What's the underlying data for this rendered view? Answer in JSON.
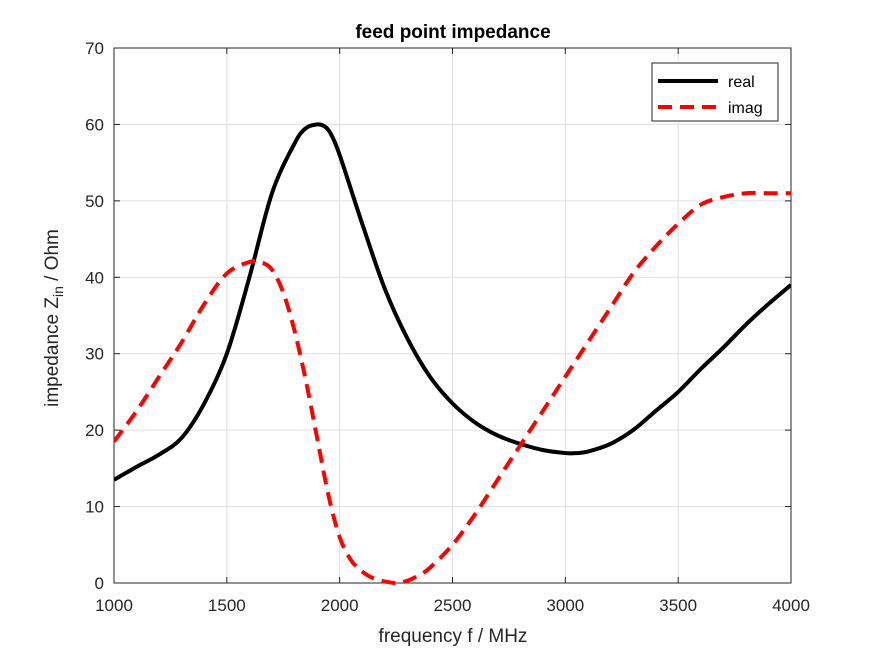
{
  "chart_data": {
    "type": "line",
    "title": "feed point impedance",
    "xlabel": "frequency f / MHz",
    "ylabel": {
      "main": "impedance Z",
      "subscript": "in",
      "suffix": " / Ohm"
    },
    "xlim": [
      1000,
      4000
    ],
    "ylim": [
      0,
      70
    ],
    "xticks": [
      "1000",
      "1500",
      "2000",
      "2500",
      "3000",
      "3500",
      "4000"
    ],
    "yticks": [
      "0",
      "10",
      "20",
      "30",
      "40",
      "50",
      "60",
      "70"
    ],
    "grid": true,
    "legend_position": "top-right",
    "series": [
      {
        "name": "real",
        "color": "#000000",
        "style": "solid",
        "x": [
          1000,
          1100,
          1200,
          1300,
          1400,
          1500,
          1600,
          1700,
          1800,
          1850,
          1900,
          1930,
          1960,
          2000,
          2100,
          2200,
          2300,
          2400,
          2500,
          2600,
          2700,
          2800,
          2900,
          3000,
          3050,
          3100,
          3200,
          3300,
          3400,
          3500,
          3600,
          3700,
          3800,
          3900,
          4000
        ],
        "y": [
          13.5,
          15.2,
          16.8,
          19.0,
          23.5,
          30.0,
          40.0,
          51.0,
          57.5,
          59.5,
          60.0,
          59.8,
          58.8,
          56.0,
          47.0,
          38.5,
          32.0,
          27.0,
          23.5,
          21.0,
          19.3,
          18.2,
          17.4,
          17.0,
          17.0,
          17.2,
          18.2,
          20.0,
          22.5,
          25.0,
          28.0,
          30.8,
          33.8,
          36.5,
          39.0
        ]
      },
      {
        "name": "imag",
        "color": "#ff0000",
        "style": "dashed",
        "x": [
          1000,
          1100,
          1200,
          1300,
          1400,
          1500,
          1600,
          1650,
          1700,
          1750,
          1800,
          1850,
          1900,
          1950,
          2000,
          2050,
          2100,
          2150,
          2200,
          2250,
          2300,
          2350,
          2400,
          2500,
          2600,
          2700,
          2800,
          2900,
          3000,
          3100,
          3200,
          3300,
          3400,
          3500,
          3600,
          3700,
          3800,
          3900,
          4000
        ],
        "y": [
          18.5,
          22.5,
          27.0,
          31.5,
          36.5,
          40.5,
          42.0,
          42.0,
          41.0,
          38.0,
          33.0,
          26.5,
          19.0,
          11.5,
          6.0,
          3.0,
          1.5,
          0.6,
          0.2,
          0.0,
          0.3,
          1.0,
          2.0,
          5.0,
          9.0,
          13.5,
          18.0,
          22.5,
          27.0,
          31.5,
          36.0,
          40.5,
          44.0,
          47.0,
          49.5,
          50.5,
          51.0,
          51.0,
          51.0
        ]
      }
    ]
  }
}
